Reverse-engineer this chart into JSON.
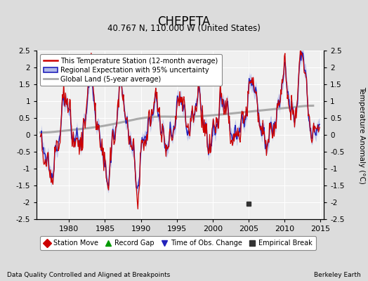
{
  "title": "CHEPETA",
  "subtitle": "40.767 N, 110.000 W (United States)",
  "ylabel": "Temperature Anomaly (°C)",
  "xlabel_note": "Data Quality Controlled and Aligned at Breakpoints",
  "credit": "Berkeley Earth",
  "xlim": [
    1975.5,
    2015.5
  ],
  "ylim": [
    -2.5,
    2.5
  ],
  "yticks": [
    -2.5,
    -2,
    -1.5,
    -1,
    -0.5,
    0,
    0.5,
    1,
    1.5,
    2,
    2.5
  ],
  "xticks": [
    1980,
    1985,
    1990,
    1995,
    2000,
    2005,
    2010,
    2015
  ],
  "bg_color": "#dcdcdc",
  "plot_bg_color": "#f0f0f0",
  "station_color": "#cc0000",
  "regional_color": "#2222bb",
  "regional_fill_color": "#b0b8e8",
  "global_color": "#aaaaaa",
  "empirical_break_year": 2005.0,
  "empirical_break_val": -2.05,
  "legend_labels": [
    "This Temperature Station (12-month average)",
    "Regional Expectation with 95% uncertainty",
    "Global Land (5-year average)"
  ],
  "marker_legend": [
    "Station Move",
    "Record Gap",
    "Time of Obs. Change",
    "Empirical Break"
  ],
  "marker_colors": [
    "#cc0000",
    "#009900",
    "#2222bb",
    "#333333"
  ],
  "marker_styles": [
    "D",
    "^",
    "v",
    "s"
  ]
}
